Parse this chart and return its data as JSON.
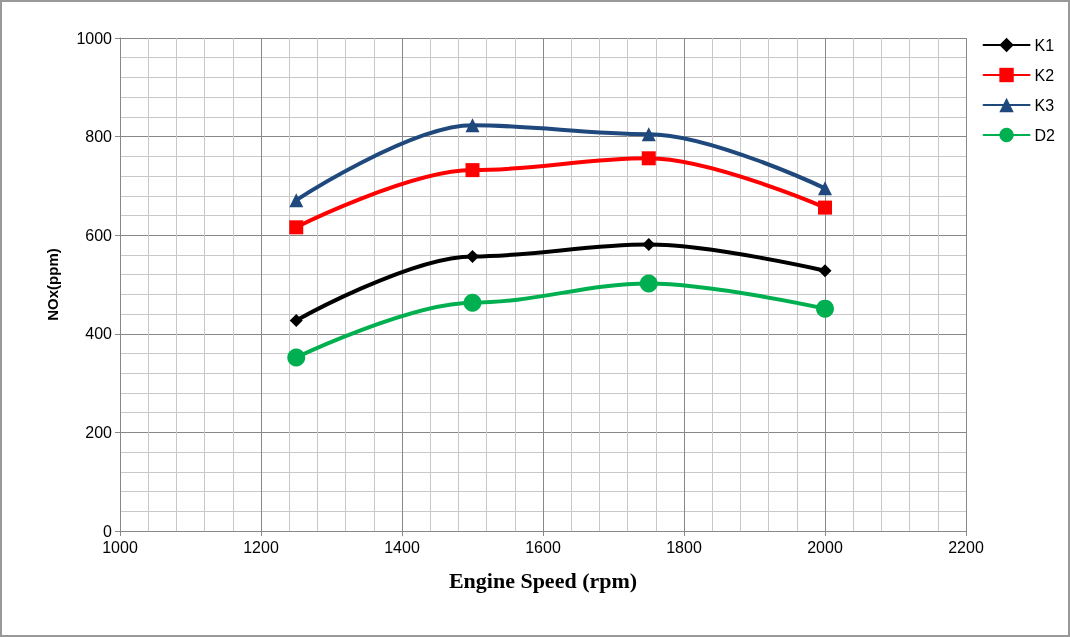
{
  "chart_data": {
    "type": "line",
    "xlabel": "Engine Speed (rpm)",
    "ylabel": "NOx(ppm)",
    "x": [
      1250,
      1500,
      1750,
      2000
    ],
    "series": [
      {
        "name": "K1",
        "color": "#000000",
        "marker": "diamond",
        "values": [
          427,
          557,
          581,
          528
        ]
      },
      {
        "name": "K2",
        "color": "#ff0000",
        "marker": "square",
        "values": [
          616,
          732,
          756,
          656
        ]
      },
      {
        "name": "K3",
        "color": "#1f497d",
        "marker": "triangle",
        "values": [
          671,
          823,
          805,
          695
        ]
      },
      {
        "name": "D2",
        "color": "#00b050",
        "marker": "circle",
        "values": [
          352,
          463,
          502,
          451
        ]
      }
    ],
    "xlim": [
      1000,
      2200
    ],
    "xticks": [
      1000,
      1200,
      1400,
      1600,
      1800,
      2000,
      2200
    ],
    "ylim": [
      0,
      1000
    ],
    "yticks": [
      0,
      200,
      400,
      600,
      800,
      1000
    ],
    "grid": true,
    "legend": "right",
    "line_style": "solid"
  }
}
